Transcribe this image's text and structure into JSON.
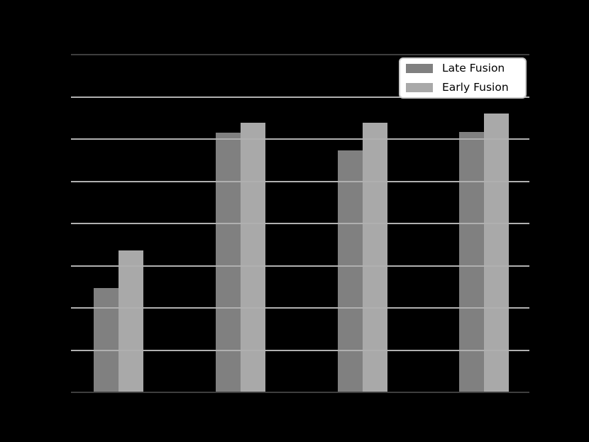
{
  "colors": {
    "background": "#000000",
    "bar_late_fusion": "#808080",
    "bar_early_fusion": "#a9a9a9",
    "gridline": "#b0b0b0",
    "spine": "#3e3e3e",
    "legend_background": "#ffffff",
    "legend_border": "#cccccc",
    "legend_text": "#000000"
  },
  "legend": {
    "position": "upper right"
  },
  "chart_data": {
    "type": "bar",
    "title": "",
    "xlabel": "",
    "ylabel": "",
    "categories": [
      "",
      "",
      "",
      ""
    ],
    "series": [
      {
        "name": "Late Fusion",
        "color": "#808080",
        "values": [
          24.7,
          61.6,
          57.3,
          61.7
        ]
      },
      {
        "name": "Early Fusion",
        "color": "#a9a9a9",
        "values": [
          33.6,
          63.9,
          63.8,
          66.0
        ]
      }
    ],
    "ylim": [
      0,
      80
    ],
    "ytick_step": 10,
    "grid": true,
    "grid_over_bars": true,
    "legend_position": "upper right",
    "notes": "Chart title, axis labels and tick labels are rendered in black and are invisible against the black background; bar values estimated from the 8 gridline divisions assuming 10 units per division."
  }
}
